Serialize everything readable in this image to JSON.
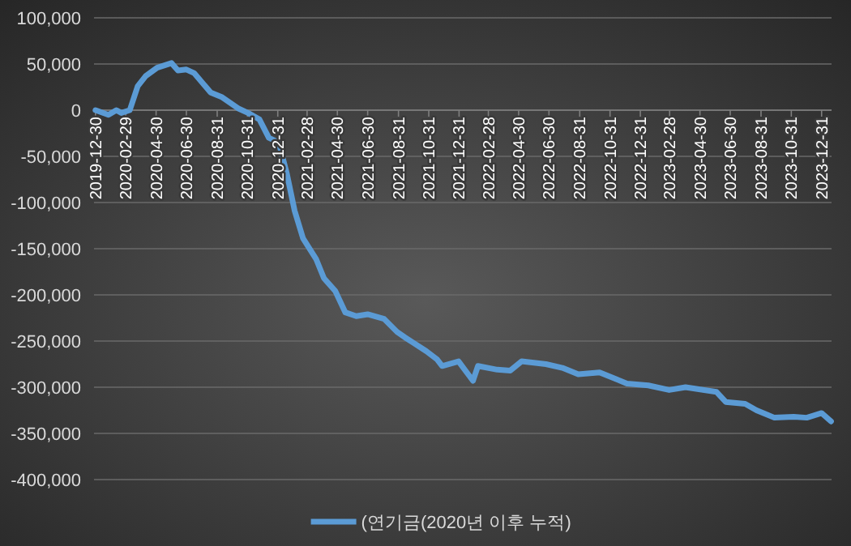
{
  "chart_data": {
    "type": "line",
    "legend": "bottom",
    "grid": "y",
    "marker": "none",
    "line_style": "solid",
    "xlim": [
      "2019-12-27",
      "2024-01-20"
    ],
    "xticks": [
      "2019-12-30",
      "2020-02-29",
      "2020-04-30",
      "2020-06-30",
      "2020-08-31",
      "2020-10-31",
      "2020-12-31",
      "2021-02-28",
      "2021-04-30",
      "2021-06-30",
      "2021-08-31",
      "2021-10-31",
      "2021-12-31",
      "2022-02-28",
      "2022-04-30",
      "2022-06-30",
      "2022-08-31",
      "2022-10-31",
      "2022-12-31",
      "2023-02-28",
      "2023-04-30",
      "2023-06-30",
      "2023-08-31",
      "2023-10-31",
      "2023-12-31"
    ],
    "ylim": [
      -400000,
      100000
    ],
    "yticks": [
      {
        "value": -400000,
        "label": "-400,000"
      },
      {
        "value": -350000,
        "label": "-350,000"
      },
      {
        "value": -300000,
        "label": "-300,000"
      },
      {
        "value": -250000,
        "label": "-250,000"
      },
      {
        "value": -200000,
        "label": "-200,000"
      },
      {
        "value": -150000,
        "label": "-150,000"
      },
      {
        "value": -100000,
        "label": "-100,000"
      },
      {
        "value": -50000,
        "label": "-50,000"
      },
      {
        "value": 0,
        "label": "0"
      },
      {
        "value": 50000,
        "label": "50,000"
      },
      {
        "value": 100000,
        "label": "100,000"
      }
    ],
    "x": [
      "2019-12-30",
      "2020-01-25",
      "2020-02-10",
      "2020-02-20",
      "2020-03-08",
      "2020-03-24",
      "2020-04-09",
      "2020-05-02",
      "2020-05-31",
      "2020-06-13",
      "2020-06-30",
      "2020-07-16",
      "2020-08-18",
      "2020-09-10",
      "2020-10-12",
      "2020-11-01",
      "2020-11-24",
      "2020-12-13",
      "2021-01-02",
      "2021-01-18",
      "2021-02-03",
      "2021-02-20",
      "2021-03-18",
      "2021-04-03",
      "2021-04-26",
      "2021-05-16",
      "2021-06-07",
      "2021-06-30",
      "2021-08-02",
      "2021-08-28",
      "2021-09-13",
      "2021-10-26",
      "2021-11-17",
      "2021-11-27",
      "2021-12-30",
      "2022-01-28",
      "2022-02-07",
      "2022-03-18",
      "2022-04-13",
      "2022-05-06",
      "2022-06-24",
      "2022-07-27",
      "2022-08-28",
      "2022-10-10",
      "2022-12-04",
      "2023-01-16",
      "2023-02-27",
      "2023-04-01",
      "2023-06-02",
      "2023-06-21",
      "2023-07-30",
      "2023-08-22",
      "2023-09-27",
      "2023-11-05",
      "2023-12-01",
      "2023-12-31",
      "2024-01-19"
    ],
    "series": [
      {
        "name": "(연기금(2020년 이후 누적)",
        "color": "#5b9bd5",
        "values": [
          0,
          -5000,
          0,
          -3000,
          0,
          26000,
          37000,
          46000,
          51000,
          43000,
          44000,
          40000,
          19000,
          14000,
          2000,
          -3000,
          -10000,
          -30000,
          -35000,
          -68000,
          -109000,
          -139000,
          -161000,
          -182000,
          -196000,
          -219000,
          -223000,
          -221000,
          -226000,
          -240000,
          -246000,
          -261000,
          -270000,
          -277000,
          -272000,
          -293000,
          -277000,
          -281000,
          -282000,
          -272000,
          -275000,
          -279000,
          -286000,
          -284000,
          -296000,
          -298000,
          -303000,
          -300000,
          -305000,
          -316000,
          -318000,
          -325000,
          -333000,
          -332000,
          -333000,
          -328000,
          -337000
        ]
      }
    ]
  }
}
